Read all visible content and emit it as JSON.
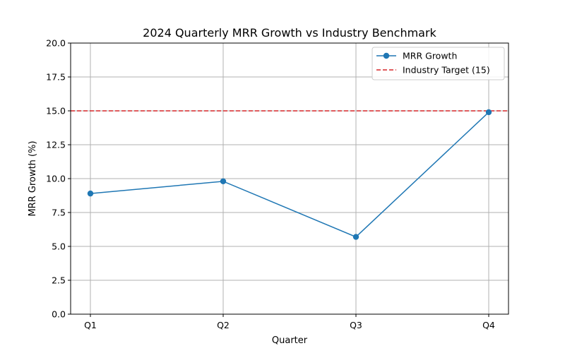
{
  "chart_data": {
    "type": "line",
    "title": "2024 Quarterly MRR Growth vs Industry Benchmark",
    "xlabel": "Quarter",
    "ylabel": "MRR Growth (%)",
    "categories": [
      "Q1",
      "Q2",
      "Q3",
      "Q4"
    ],
    "ylim": [
      0,
      20
    ],
    "yticks": [
      "0.0",
      "2.5",
      "5.0",
      "7.5",
      "10.0",
      "12.5",
      "15.0",
      "17.5",
      "20.0"
    ],
    "grid": true,
    "legend_position": "top-right",
    "series": [
      {
        "name": "MRR Growth",
        "values": [
          8.9,
          9.8,
          5.7,
          14.9
        ],
        "color": "#1f77b4",
        "marker": "circle",
        "line_style": "solid"
      }
    ],
    "reference_lines": [
      {
        "name": "Industry Target (15)",
        "value": 15,
        "color": "#d62728",
        "line_style": "dashed"
      }
    ]
  }
}
